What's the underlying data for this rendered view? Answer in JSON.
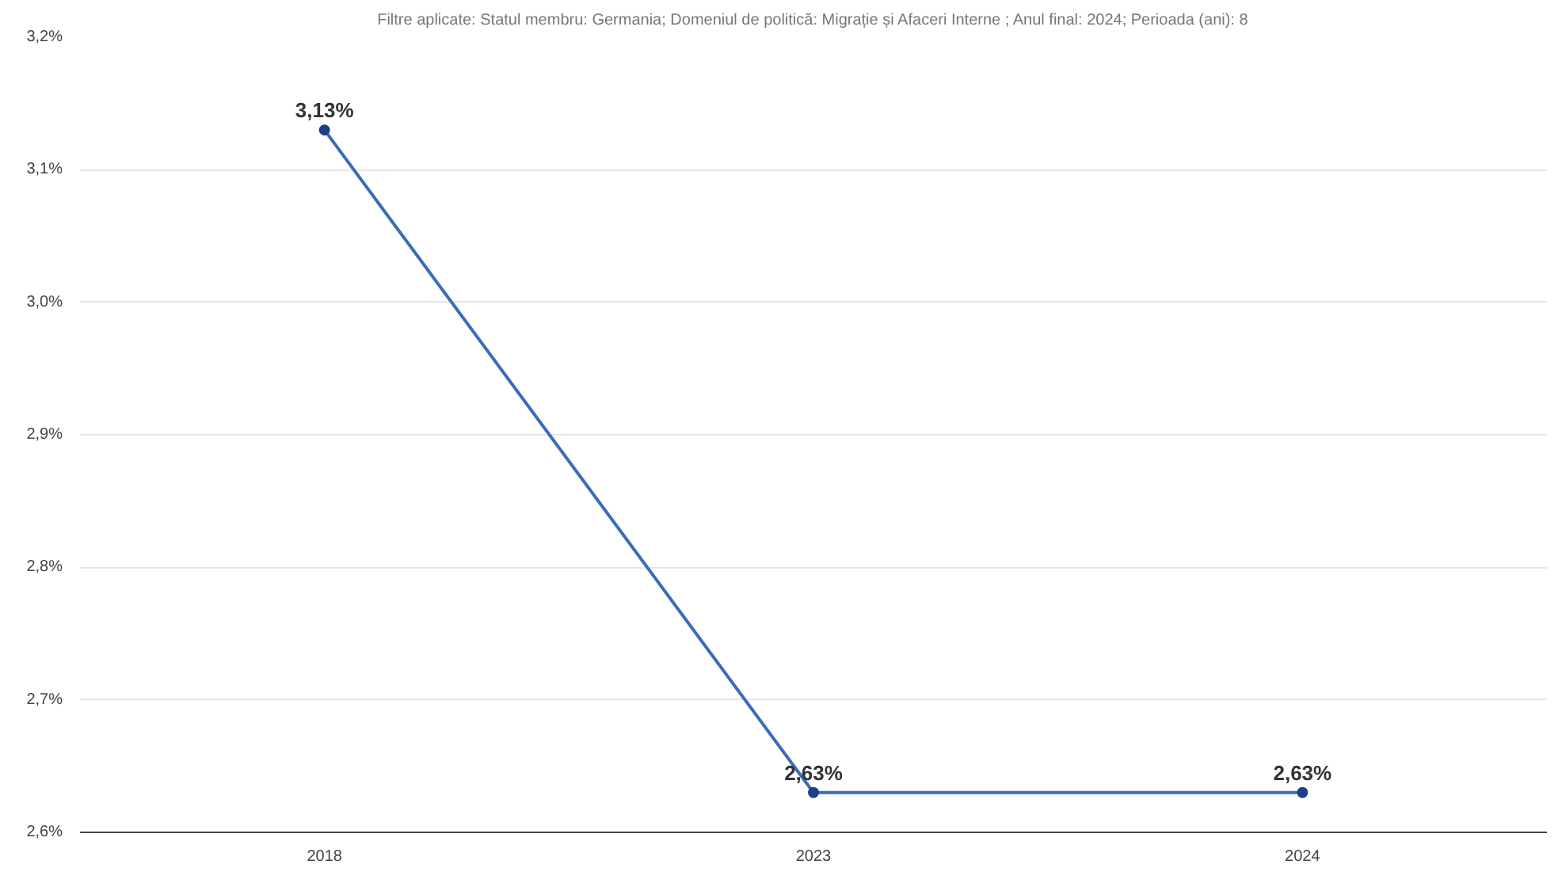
{
  "chart_data": {
    "type": "line",
    "title": "Filtre aplicate: Statul membru: Germania; Domeniul de politică: Migrație și Afaceri Interne ; Anul final: 2024; Perioada (ani): 8",
    "categories": [
      "2018",
      "2023",
      "2024"
    ],
    "series": [
      {
        "color": "#3b6cb7",
        "values": [
          3.13,
          2.63,
          2.63
        ],
        "value_labels": [
          "3,13%",
          "2,63%",
          "2,63%"
        ]
      }
    ],
    "ylim": [
      2.6,
      3.2
    ],
    "yticks": [
      {
        "value": 2.6,
        "label": "2,6%"
      },
      {
        "value": 2.7,
        "label": "2,7%"
      },
      {
        "value": 2.8,
        "label": "2,8%"
      },
      {
        "value": 2.9,
        "label": "2,9%"
      },
      {
        "value": 3.0,
        "label": "3,0%"
      },
      {
        "value": 3.1,
        "label": "3,1%"
      },
      {
        "value": 3.2,
        "label": "3,2%"
      }
    ],
    "grid": "y",
    "marker": "circle",
    "line_style": "solid"
  }
}
